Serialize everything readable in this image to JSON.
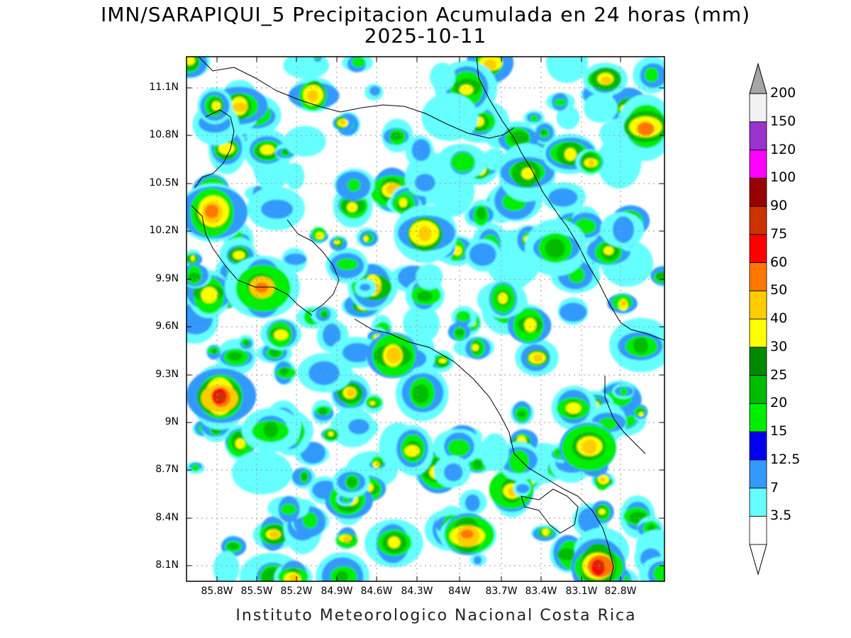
{
  "title": {
    "line1": "IMN/SARAPIQUI_5 Precipitacion Acumulada en 24 horas (mm)",
    "line2": "2025-10-11"
  },
  "footer": "Instituto Meteorologico Nacional Costa Rica",
  "lat_labels": [
    "11.1N",
    "10.8N",
    "10.5N",
    "10.2N",
    "9.9N",
    "9.6N",
    "9.3N",
    "9N",
    "8.7N",
    "8.4N",
    "8.1N"
  ],
  "lon_labels": [
    "85.8W",
    "85.5W",
    "85.2W",
    "84.9W",
    "84.6W",
    "84.3W",
    "84W",
    "83.7W",
    "83.4W",
    "83.1W",
    "82.8W"
  ],
  "colorbar": {
    "labels": [
      "200",
      "150",
      "120",
      "100",
      "90",
      "75",
      "60",
      "50",
      "40",
      "30",
      "25",
      "20",
      "15",
      "12.5",
      "7",
      "3.5"
    ],
    "colors": [
      "#ffffff",
      "#66ffff",
      "#3399ff",
      "#0000ee",
      "#00ee00",
      "#00bb00",
      "#008800",
      "#ffff00",
      "#ffcc00",
      "#ff7700",
      "#ff0000",
      "#cc3300",
      "#990000",
      "#ff00ff",
      "#9933cc",
      "#f2f2f2"
    ],
    "over_color": "#a6a6a6"
  }
}
